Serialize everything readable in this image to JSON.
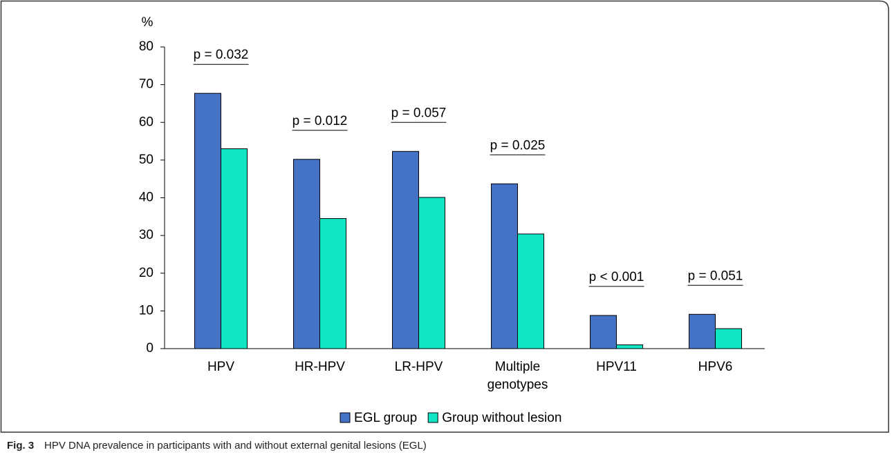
{
  "chart_data": {
    "type": "bar",
    "y_label": "%",
    "categories": [
      "HPV",
      "HR-HPV",
      "LR-HPV",
      "Multiple genotypes",
      "HPV11",
      "HPV6"
    ],
    "series": [
      {
        "name": "EGL group",
        "color": "#4472c4",
        "values": [
          67.7,
          50.2,
          52.3,
          43.7,
          8.8,
          9.1
        ]
      },
      {
        "name": "Group without lesion",
        "color": "#10e5c6",
        "values": [
          53,
          34.5,
          40.1,
          30.4,
          1.0,
          5.3
        ]
      }
    ],
    "annotations": [
      "p = 0.032",
      "p = 0.012",
      "p = 0.057",
      "p = 0.025",
      "p < 0.001",
      "p = 0.051"
    ],
    "ylim": [
      0,
      80
    ],
    "yticks": [
      0,
      10,
      20,
      30,
      40,
      50,
      60,
      70,
      80
    ],
    "legend": "bottom",
    "caption": {
      "label": "Fig. 3",
      "text": "HPV DNA prevalence in participants with and without external genital lesions (EGL)"
    }
  }
}
